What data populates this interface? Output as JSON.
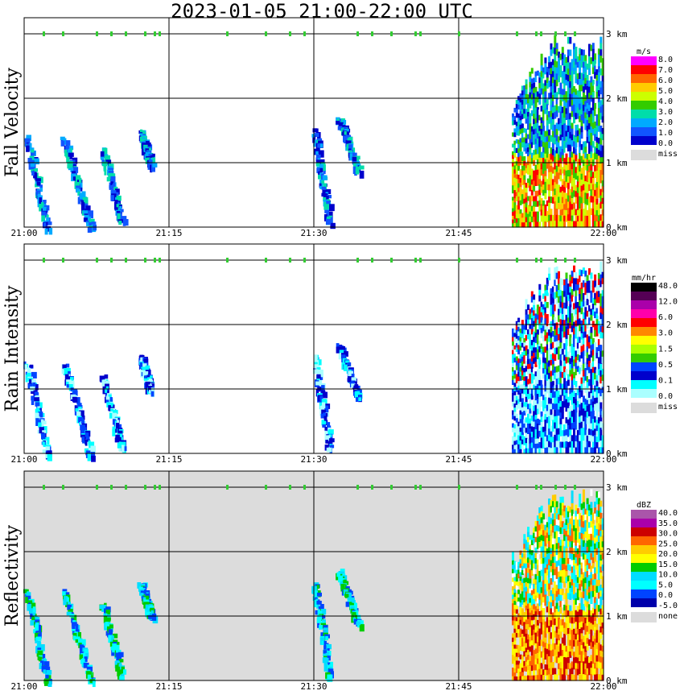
{
  "title": "2023-01-05  21:00-22:00 UTC",
  "colors": {
    "missing": "#dcdcdc",
    "grid": "#000000",
    "marker": "#33cc33"
  },
  "time_ticks": [
    "21:00",
    "21:15",
    "21:30",
    "21:45",
    "22:00"
  ],
  "height_ticks": [
    "0 km",
    "1 km",
    "2 km",
    "3 km"
  ],
  "panels": [
    {
      "id": "fall-velocity",
      "ylabel": "Fall Velocity",
      "unit": "m/s",
      "missing_background": false,
      "colorbar": {
        "labels": [
          "8.0",
          "7.0",
          "6.0",
          "5.0",
          "4.0",
          "3.0",
          "2.0",
          "1.0",
          "0.0"
        ],
        "colors": [
          "#ff00ff",
          "#ff0000",
          "#ff6600",
          "#ffcc00",
          "#ccff00",
          "#33cc00",
          "#00ddaa",
          "#00aaff",
          "#1155ff",
          "#0000cc"
        ],
        "missing_label": "miss"
      }
    },
    {
      "id": "rain-intensity",
      "ylabel": "Rain Intensity",
      "unit": "mm/hr",
      "missing_background": false,
      "colorbar": {
        "labels": [
          "48.0",
          "12.0",
          "6.0",
          "3.0",
          "1.5",
          "0.5",
          "0.1",
          "0.0"
        ],
        "colors": [
          "#000000",
          "#550055",
          "#aa00aa",
          "#ff00aa",
          "#ff0000",
          "#ff8800",
          "#ffff00",
          "#aaff00",
          "#33cc00",
          "#0044ff",
          "#0000cc",
          "#00ffff",
          "#aaffff"
        ],
        "missing_label": "miss"
      }
    },
    {
      "id": "reflectivity",
      "ylabel": "Reflectivity",
      "unit": "dBZ",
      "missing_background": true,
      "colorbar": {
        "labels": [
          "40.0",
          "35.0",
          "30.0",
          "25.0",
          "20.0",
          "15.0",
          "10.0",
          "5.0",
          "0.0",
          "-5.0"
        ],
        "colors": [
          "#aa55aa",
          "#aa00aa",
          "#cc0000",
          "#ff6600",
          "#ffcc00",
          "#ffff00",
          "#00cc00",
          "#00ddff",
          "#00ffff",
          "#0044ff",
          "#0000aa"
        ],
        "missing_label": "none"
      }
    }
  ],
  "chart_data": {
    "type": "heatmap",
    "title": "2023-01-05  21:00-22:00 UTC",
    "x_axis": {
      "label": "",
      "range": [
        "21:00",
        "22:00"
      ],
      "ticks": [
        "21:00",
        "21:15",
        "21:30",
        "21:45",
        "22:00"
      ]
    },
    "y_axis": {
      "label": "",
      "range_km": [
        0,
        3.25
      ],
      "ticks": [
        "0 km",
        "1 km",
        "2 km",
        "3 km"
      ]
    },
    "grid": true,
    "surface_marker_times_min": [
      2,
      4,
      7.5,
      9,
      10.5,
      12.5,
      13.5,
      14,
      21,
      25,
      27.5,
      29,
      34.5,
      36,
      38,
      40.5,
      41,
      45,
      51,
      53,
      53.5,
      55,
      56,
      57
    ],
    "features": [
      {
        "panel": "all",
        "shape": "slanted streak",
        "t_start_min": 0.2,
        "t_end_min": 2.3,
        "top_km": 1.4,
        "bottom_km": 0.0
      },
      {
        "panel": "all",
        "shape": "slanted streak",
        "t_start_min": 4.0,
        "t_end_min": 6.8,
        "top_km": 1.4,
        "bottom_km": 0.0
      },
      {
        "panel": "all",
        "shape": "slanted streak",
        "t_start_min": 8.0,
        "t_end_min": 10.0,
        "top_km": 1.2,
        "bottom_km": 0.1
      },
      {
        "panel": "all",
        "shape": "slanted streak",
        "t_start_min": 12.0,
        "t_end_min": 13.0,
        "top_km": 1.5,
        "bottom_km": 1.0
      },
      {
        "panel": "all",
        "shape": "slanted streak",
        "t_start_min": 30.0,
        "t_end_min": 31.5,
        "top_km": 1.5,
        "bottom_km": 0.1
      },
      {
        "panel": "all",
        "shape": "slanted streak",
        "t_start_min": 32.5,
        "t_end_min": 34.5,
        "top_km": 1.7,
        "bottom_km": 0.9
      },
      {
        "panel": "all",
        "shape": "precipitation region",
        "t_start_min": 50.5,
        "t_end_min": 60.0,
        "top_km": 3.0,
        "bottom_km": 0.0
      }
    ]
  }
}
